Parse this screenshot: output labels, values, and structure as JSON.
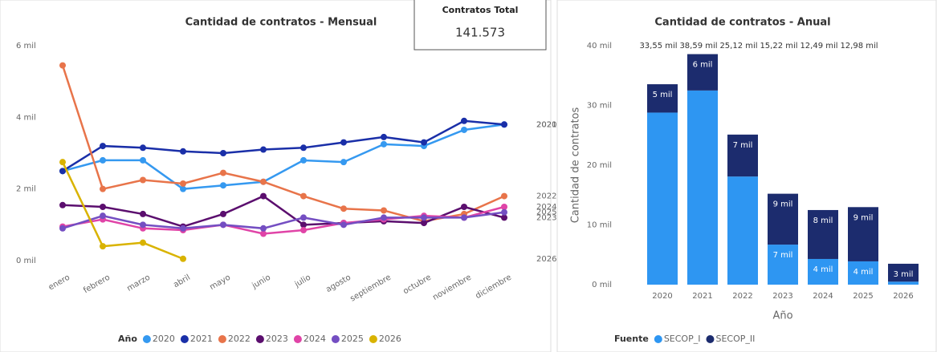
{
  "card": {
    "title": "Contratos Total",
    "value": "141.573"
  },
  "chart_data": [
    {
      "type": "line",
      "title": "Cantidad de contratos - Mensual",
      "categories": [
        "enero",
        "febrero",
        "marzo",
        "abril",
        "mayo",
        "junio",
        "julio",
        "agosto",
        "septiembre",
        "octubre",
        "noviembre",
        "diciembre"
      ],
      "ylim": [
        0,
        6
      ],
      "yticks": [
        {
          "value": 0,
          "label": "0 mil"
        },
        {
          "value": 2,
          "label": "2 mil"
        },
        {
          "value": 4,
          "label": "4 mil"
        },
        {
          "value": 6,
          "label": "6 mil"
        }
      ],
      "legend_title": "Año",
      "series": [
        {
          "name": "2020",
          "color": "#3599f0",
          "values": [
            2.5,
            2.8,
            2.8,
            2.0,
            2.1,
            2.2,
            2.8,
            2.75,
            3.25,
            3.2,
            3.65,
            3.8
          ]
        },
        {
          "name": "2021",
          "color": "#1a2fa8",
          "values": [
            2.5,
            3.2,
            3.15,
            3.05,
            3.0,
            3.1,
            3.15,
            3.3,
            3.45,
            3.3,
            3.9,
            3.8
          ]
        },
        {
          "name": "2022",
          "color": "#e8744a",
          "values": [
            5.45,
            2.0,
            2.25,
            2.15,
            2.45,
            2.2,
            1.8,
            1.45,
            1.4,
            1.1,
            1.3,
            1.8
          ]
        },
        {
          "name": "2023",
          "color": "#5b0e6e",
          "values": [
            1.55,
            1.5,
            1.3,
            0.95,
            1.3,
            1.8,
            1.0,
            1.05,
            1.1,
            1.05,
            1.5,
            1.2
          ]
        },
        {
          "name": "2024",
          "color": "#e044a7",
          "values": [
            0.95,
            1.15,
            0.9,
            0.85,
            1.0,
            0.75,
            0.85,
            1.05,
            1.15,
            1.25,
            1.2,
            1.5
          ]
        },
        {
          "name": "2025",
          "color": "#744ec2",
          "values": [
            0.9,
            1.25,
            1.0,
            0.9,
            1.0,
            0.9,
            1.2,
            1.0,
            1.2,
            1.2,
            1.2,
            1.35
          ]
        },
        {
          "name": "2026",
          "color": "#d9b300",
          "values": [
            2.75,
            0.4,
            0.5,
            0.05,
            null,
            null,
            null,
            null,
            null,
            null,
            null,
            null
          ]
        }
      ]
    },
    {
      "type": "bar",
      "stacked": true,
      "title": "Cantidad de contratos - Anual",
      "categories": [
        "2020",
        "2021",
        "2022",
        "2023",
        "2024",
        "2025",
        "2026"
      ],
      "x_label": "Año",
      "y_label": "Cantidad de contratos",
      "ylim": [
        0,
        40
      ],
      "yticks": [
        {
          "value": 0,
          "label": "0 mil"
        },
        {
          "value": 10,
          "label": "10 mil"
        },
        {
          "value": 20,
          "label": "20 mil"
        },
        {
          "value": 30,
          "label": "30 mil"
        },
        {
          "value": 40,
          "label": "40 mil"
        }
      ],
      "legend_title": "Fuente",
      "total_labels": [
        "33,55 mil",
        "38,59 mil",
        "25,12 mil",
        "15,22 mil",
        "12,49 mil",
        "12,98 mil",
        null
      ],
      "series": [
        {
          "name": "SECOP_I",
          "color": "#2e96f2",
          "values": [
            28.8,
            32.5,
            18.1,
            6.7,
            4.3,
            3.9,
            0.5
          ],
          "value_labels": [
            null,
            null,
            null,
            "7 mil",
            "4 mil",
            "4 mil",
            null
          ]
        },
        {
          "name": "SECOP_II",
          "color": "#1c2c6e",
          "values": [
            4.75,
            6.09,
            7.02,
            8.52,
            8.19,
            9.08,
            3.0
          ],
          "value_labels": [
            "5 mil",
            "6 mil",
            "7 mil",
            "9 mil",
            "8 mil",
            "9 mil",
            "3 mil"
          ]
        }
      ]
    }
  ]
}
